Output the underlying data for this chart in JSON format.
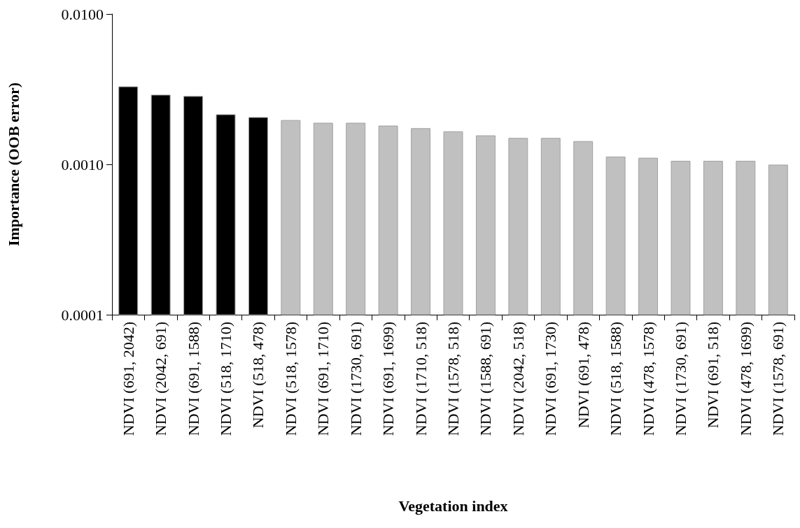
{
  "chart_data": {
    "type": "bar",
    "xlabel": "Vegetation index",
    "ylabel": "Importance (OOB error)",
    "categories": [
      "NDVI (691, 2042)",
      "NDVI (2042, 691)",
      "NDVI (691, 1588)",
      "NDVI (518, 1710)",
      "NDVI (518, 478)",
      "NDVI (518, 1578)",
      "NDVI (691, 1710)",
      "NDVI (1730, 691)",
      "NDVI (691, 1699)",
      "NDVI (1710, 518)",
      "NDVI (1578, 518)",
      "NDVI (1588, 691)",
      "NDVI (2042, 518)",
      "NDVI (691, 1730)",
      "NDVI (691, 478)",
      "NDVI (518, 1588)",
      "NDVI (478, 1578)",
      "NDVI (1730, 691)",
      "NDVI (691, 518)",
      "NDVI (478, 1699)",
      "NDVI (1578, 691)"
    ],
    "values": [
      0.00328,
      0.00289,
      0.00283,
      0.00214,
      0.00205,
      0.00196,
      0.00188,
      0.00188,
      0.0018,
      0.00173,
      0.00165,
      0.00155,
      0.00149,
      0.00149,
      0.00142,
      0.00112,
      0.0011,
      0.00105,
      0.00105,
      0.00105,
      0.00099
    ],
    "colors": [
      "#000000",
      "#000000",
      "#000000",
      "#000000",
      "#000000",
      "#c0c0c0",
      "#c0c0c0",
      "#c0c0c0",
      "#c0c0c0",
      "#c0c0c0",
      "#c0c0c0",
      "#c0c0c0",
      "#c0c0c0",
      "#c0c0c0",
      "#c0c0c0",
      "#c0c0c0",
      "#c0c0c0",
      "#c0c0c0",
      "#c0c0c0",
      "#c0c0c0",
      "#c0c0c0"
    ],
    "log": true,
    "ylim": [
      0.0001,
      0.01
    ],
    "yticks": [
      {
        "value": 0.0001,
        "label": "0.0001"
      },
      {
        "value": 0.001,
        "label": "0.0010"
      },
      {
        "value": 0.01,
        "label": "0.0100"
      }
    ],
    "grid": false
  }
}
